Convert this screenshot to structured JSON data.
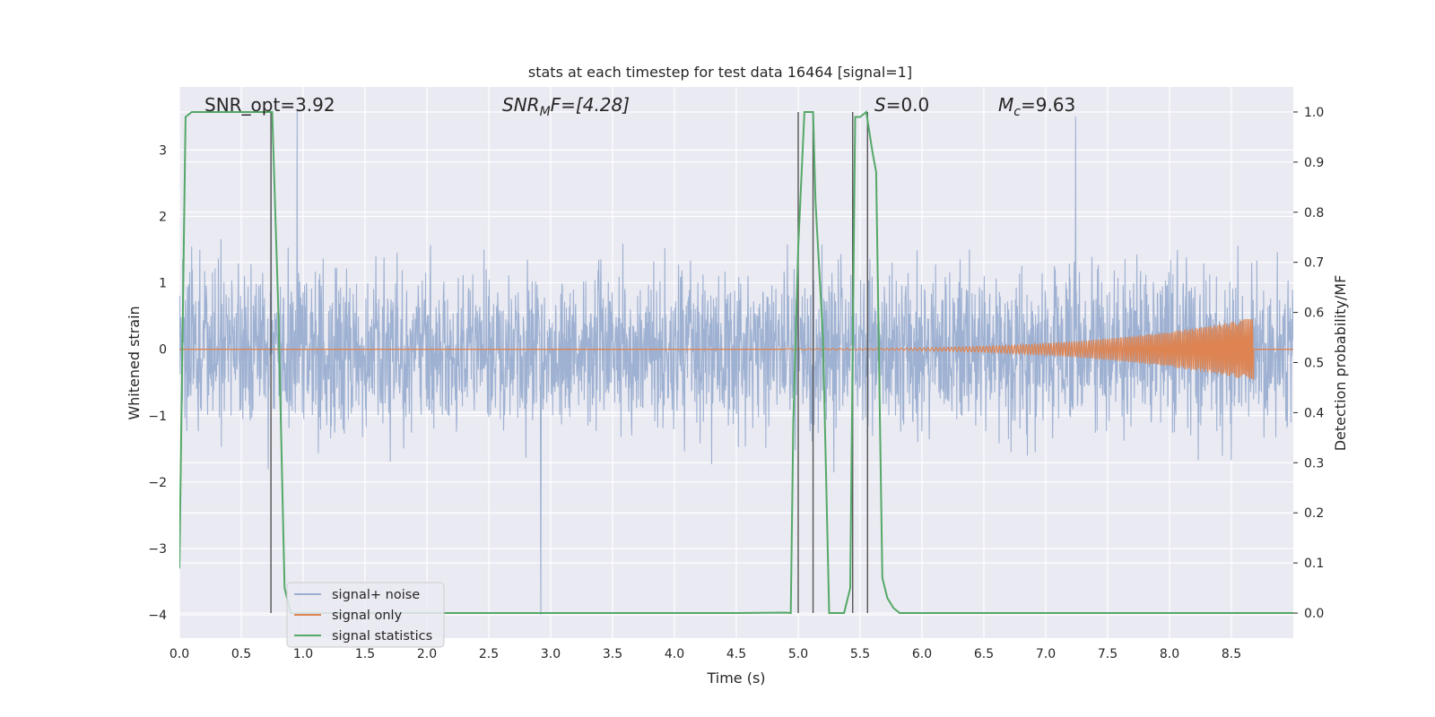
{
  "chart_data": {
    "type": "line",
    "title": "stats at each timestep for test data 16464 [signal=1]",
    "xlabel": "Time (s)",
    "ylabel": "Whitened strain",
    "y2label": "Detection probability/MF",
    "xlim": [
      0.0,
      9.0
    ],
    "ylim": [
      -4.35,
      3.95
    ],
    "y2lim": [
      -0.05,
      1.05
    ],
    "xticks": [
      0.0,
      0.5,
      1.0,
      1.5,
      2.0,
      2.5,
      3.0,
      3.5,
      4.0,
      4.5,
      5.0,
      5.5,
      6.0,
      6.5,
      7.0,
      7.5,
      8.0,
      8.5
    ],
    "yticks": [
      3,
      2,
      1,
      0,
      -1,
      -2,
      -3,
      -4
    ],
    "ytick_labels": [
      "3",
      "2",
      "1",
      "0",
      "−1",
      "−2",
      "−3",
      "−4"
    ],
    "y2ticks": [
      1.0,
      0.9,
      0.8,
      0.7,
      0.6,
      0.5,
      0.4,
      0.3,
      0.2,
      0.1,
      0.0
    ],
    "grid": true,
    "legend_position": "bottom-left",
    "annotations": [
      {
        "id": "snr_opt",
        "text": "SNR_opt=3.92"
      },
      {
        "id": "snr_mf",
        "main": "SNR",
        "sub": "M",
        "rest": "F=[4.28]"
      },
      {
        "id": "s",
        "italic": "S",
        "rest": "=0.0"
      },
      {
        "id": "mc",
        "main": "M",
        "sub": "c",
        "rest": "=9.63"
      }
    ],
    "series": [
      {
        "name": "signal+ noise",
        "kind": "noise",
        "color": "#9aaed0",
        "amplitude_envelope": [
          -4.0,
          3.6
        ],
        "peaks": [
          [
            0.74,
            3.2
          ],
          [
            0.95,
            3.6
          ],
          [
            2.92,
            -4.0
          ],
          [
            7.24,
            3.5
          ]
        ]
      },
      {
        "name": "signal only",
        "kind": "chirp",
        "color": "#dd8452",
        "start": 4.9,
        "end": 8.68,
        "max_amplitude": 0.48
      },
      {
        "name": "signal statistics",
        "kind": "probability",
        "color": "#55a868",
        "x": [
          0.0,
          0.05,
          0.1,
          0.15,
          0.2,
          0.3,
          0.4,
          0.5,
          0.6,
          0.7,
          0.75,
          0.8,
          0.85,
          0.9,
          1.0,
          1.5,
          2.0,
          2.5,
          3.0,
          3.5,
          4.0,
          4.5,
          4.9,
          4.94,
          4.96,
          5.0,
          5.05,
          5.08,
          5.12,
          5.14,
          5.2,
          5.25,
          5.3,
          5.37,
          5.42,
          5.44,
          5.46,
          5.5,
          5.55,
          5.6,
          5.63,
          5.68,
          5.72,
          5.77,
          5.82,
          5.9,
          6.0,
          7.0,
          8.0,
          9.0
        ],
        "y": [
          0.09,
          0.99,
          1.0,
          1.0,
          1.0,
          1.0,
          1.0,
          1.0,
          1.0,
          1.0,
          1.0,
          0.6,
          0.05,
          0.0,
          0.0,
          0.0,
          0.0,
          0.0,
          0.0,
          0.0,
          0.0,
          0.0,
          0.001,
          0.0,
          0.38,
          0.73,
          1.0,
          1.0,
          1.0,
          0.82,
          0.55,
          0.0,
          0.0,
          0.0,
          0.05,
          0.52,
          0.99,
          0.99,
          1.0,
          0.92,
          0.88,
          0.07,
          0.03,
          0.01,
          0.0,
          0.0,
          0.0,
          0.0,
          0.0,
          0.0
        ]
      }
    ],
    "vertical_lines": {
      "color": "#555555",
      "x": [
        0.74,
        5.0,
        5.12,
        5.44,
        5.56
      ],
      "from": 0.0,
      "to": 1.0
    }
  }
}
